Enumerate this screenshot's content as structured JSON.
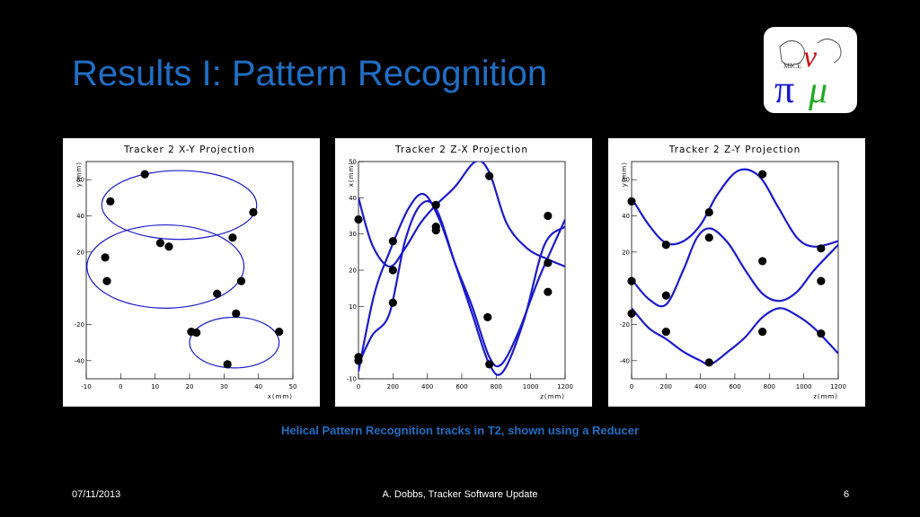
{
  "slide": {
    "title": "Results I: Pattern Recognition",
    "caption": "Helical Pattern Recognition tracks in T2, shown using a Reducer",
    "footer_date": "07/11/2013",
    "footer_center": "A. Dobbs, Tracker Software Update",
    "footer_page": "6"
  },
  "colors": {
    "accent": "#1f6fc4",
    "track": "#1a1acc",
    "point": "#000000"
  },
  "logo": {
    "text_small": "MICE",
    "text_pi": "π",
    "text_v": "ν",
    "text_mu": "μ"
  },
  "chart_data": [
    {
      "type": "scatter",
      "title": "Tracker 2 X-Y Projection",
      "xlabel": "x(mm)",
      "ylabel": "y(mm)",
      "xlim": [
        -10,
        50
      ],
      "ylim": [
        -50,
        70
      ],
      "xticks": [
        -10,
        0,
        10,
        20,
        30,
        40,
        50
      ],
      "yticks": [
        -40,
        -20,
        20,
        40,
        60
      ],
      "ytick_labels": [
        "-40",
        "-20",
        "20",
        "40",
        "60"
      ],
      "circles": [
        {
          "cx": 17,
          "cy": 46,
          "rx": 22.5,
          "ry": 19
        },
        {
          "cx": 13,
          "cy": 12,
          "rx": 22.8,
          "ry": 23
        },
        {
          "cx": 33,
          "cy": -30,
          "rx": 13,
          "ry": 14
        }
      ],
      "points": [
        {
          "x": 7,
          "y": 63
        },
        {
          "x": -3,
          "y": 48
        },
        {
          "x": 38.5,
          "y": 42
        },
        {
          "x": 32.5,
          "y": 28
        },
        {
          "x": 11.5,
          "y": 25
        },
        {
          "x": 14,
          "y": 23
        },
        {
          "x": -4.5,
          "y": 17
        },
        {
          "x": -4,
          "y": 4
        },
        {
          "x": 35,
          "y": 4
        },
        {
          "x": 28,
          "y": -3
        },
        {
          "x": 33.5,
          "y": -14
        },
        {
          "x": 20.5,
          "y": -24
        },
        {
          "x": 22,
          "y": -24.5
        },
        {
          "x": 46,
          "y": -24
        },
        {
          "x": 31,
          "y": -42
        }
      ]
    },
    {
      "type": "line",
      "title": "Tracker 2 Z-X Projection",
      "xlabel": "z(mm)",
      "ylabel": "x(mm)",
      "xlim": [
        0,
        1200
      ],
      "ylim": [
        -10,
        50
      ],
      "xticks": [
        0,
        200,
        400,
        600,
        800,
        1000,
        1200
      ],
      "yticks": [
        -10,
        10,
        20,
        30,
        40,
        50
      ],
      "ytick_labels": [
        "-10",
        "10",
        "20",
        "30",
        "40",
        "50"
      ],
      "series": [
        {
          "values_xy": [
            [
              0,
              -8
            ],
            [
              90,
              13
            ],
            [
              180,
              25
            ],
            [
              290,
              37
            ],
            [
              380,
              41
            ],
            [
              470,
              34
            ],
            [
              560,
              22
            ],
            [
              660,
              10
            ],
            [
              760,
              -4
            ],
            [
              830,
              -6
            ],
            [
              930,
              3
            ],
            [
              1050,
              18
            ],
            [
              1200,
              34
            ]
          ]
        },
        {
          "values_xy": [
            [
              0,
              -6
            ],
            [
              80,
              2
            ],
            [
              180,
              8
            ],
            [
              270,
              28
            ],
            [
              360,
              38
            ],
            [
              450,
              37
            ],
            [
              560,
              22
            ],
            [
              660,
              8
            ],
            [
              760,
              -6
            ],
            [
              840,
              -8
            ],
            [
              960,
              6
            ],
            [
              1080,
              27
            ],
            [
              1200,
              32
            ]
          ]
        },
        {
          "values_xy": [
            [
              0,
              40
            ],
            [
              80,
              27
            ],
            [
              180,
              21
            ],
            [
              270,
              26
            ],
            [
              360,
              33
            ],
            [
              450,
              38
            ],
            [
              560,
              43
            ],
            [
              680,
              50
            ],
            [
              760,
              47
            ],
            [
              860,
              33
            ],
            [
              980,
              26
            ],
            [
              1100,
              23
            ],
            [
              1200,
              21
            ]
          ]
        }
      ],
      "points": [
        {
          "x": 0,
          "y": 34
        },
        {
          "x": 0,
          "y": -4
        },
        {
          "x": 0,
          "y": -5
        },
        {
          "x": 200,
          "y": 28
        },
        {
          "x": 200,
          "y": 20
        },
        {
          "x": 200,
          "y": 11
        },
        {
          "x": 450,
          "y": 38
        },
        {
          "x": 450,
          "y": 32
        },
        {
          "x": 450,
          "y": 31
        },
        {
          "x": 760,
          "y": 46
        },
        {
          "x": 750,
          "y": 7
        },
        {
          "x": 760,
          "y": -6
        },
        {
          "x": 1100,
          "y": 35
        },
        {
          "x": 1100,
          "y": 22
        },
        {
          "x": 1100,
          "y": 14
        }
      ]
    },
    {
      "type": "line",
      "title": "Tracker 2 Z-Y Projection",
      "xlabel": "z(mm)",
      "ylabel": "y(mm)",
      "xlim": [
        0,
        1200
      ],
      "ylim": [
        -50,
        70
      ],
      "xticks": [
        0,
        200,
        400,
        600,
        800,
        1000,
        1200
      ],
      "yticks": [
        -40,
        -20,
        20,
        40,
        60
      ],
      "ytick_labels": [
        "-40",
        "-20",
        "20",
        "40",
        "60"
      ],
      "series": [
        {
          "values_xy": [
            [
              0,
              50
            ],
            [
              100,
              35
            ],
            [
              200,
              25
            ],
            [
              300,
              26
            ],
            [
              400,
              35
            ],
            [
              500,
              52
            ],
            [
              620,
              65
            ],
            [
              740,
              62
            ],
            [
              850,
              45
            ],
            [
              960,
              28
            ],
            [
              1060,
              23
            ],
            [
              1200,
              26
            ]
          ]
        },
        {
          "values_xy": [
            [
              0,
              5
            ],
            [
              100,
              -6
            ],
            [
              200,
              -9
            ],
            [
              300,
              10
            ],
            [
              380,
              28
            ],
            [
              460,
              33
            ],
            [
              560,
              25
            ],
            [
              660,
              10
            ],
            [
              760,
              -3
            ],
            [
              860,
              -7
            ],
            [
              960,
              -2
            ],
            [
              1060,
              10
            ],
            [
              1200,
              24
            ]
          ]
        },
        {
          "values_xy": [
            [
              0,
              -11
            ],
            [
              100,
              -22
            ],
            [
              200,
              -28
            ],
            [
              300,
              -35
            ],
            [
              400,
              -40
            ],
            [
              460,
              -42
            ],
            [
              560,
              -35
            ],
            [
              660,
              -27
            ],
            [
              760,
              -16
            ],
            [
              860,
              -11
            ],
            [
              960,
              -15
            ],
            [
              1060,
              -22
            ],
            [
              1200,
              -36
            ]
          ]
        }
      ],
      "points": [
        {
          "x": 0,
          "y": 48
        },
        {
          "x": 0,
          "y": 4
        },
        {
          "x": 0,
          "y": -14
        },
        {
          "x": 200,
          "y": 24
        },
        {
          "x": 200,
          "y": -4
        },
        {
          "x": 200,
          "y": -24
        },
        {
          "x": 450,
          "y": 42
        },
        {
          "x": 450,
          "y": 28
        },
        {
          "x": 450,
          "y": -41
        },
        {
          "x": 760,
          "y": 63
        },
        {
          "x": 760,
          "y": 15
        },
        {
          "x": 760,
          "y": -24
        },
        {
          "x": 1100,
          "y": 22
        },
        {
          "x": 1100,
          "y": 4
        },
        {
          "x": 1100,
          "y": -25
        }
      ]
    }
  ]
}
